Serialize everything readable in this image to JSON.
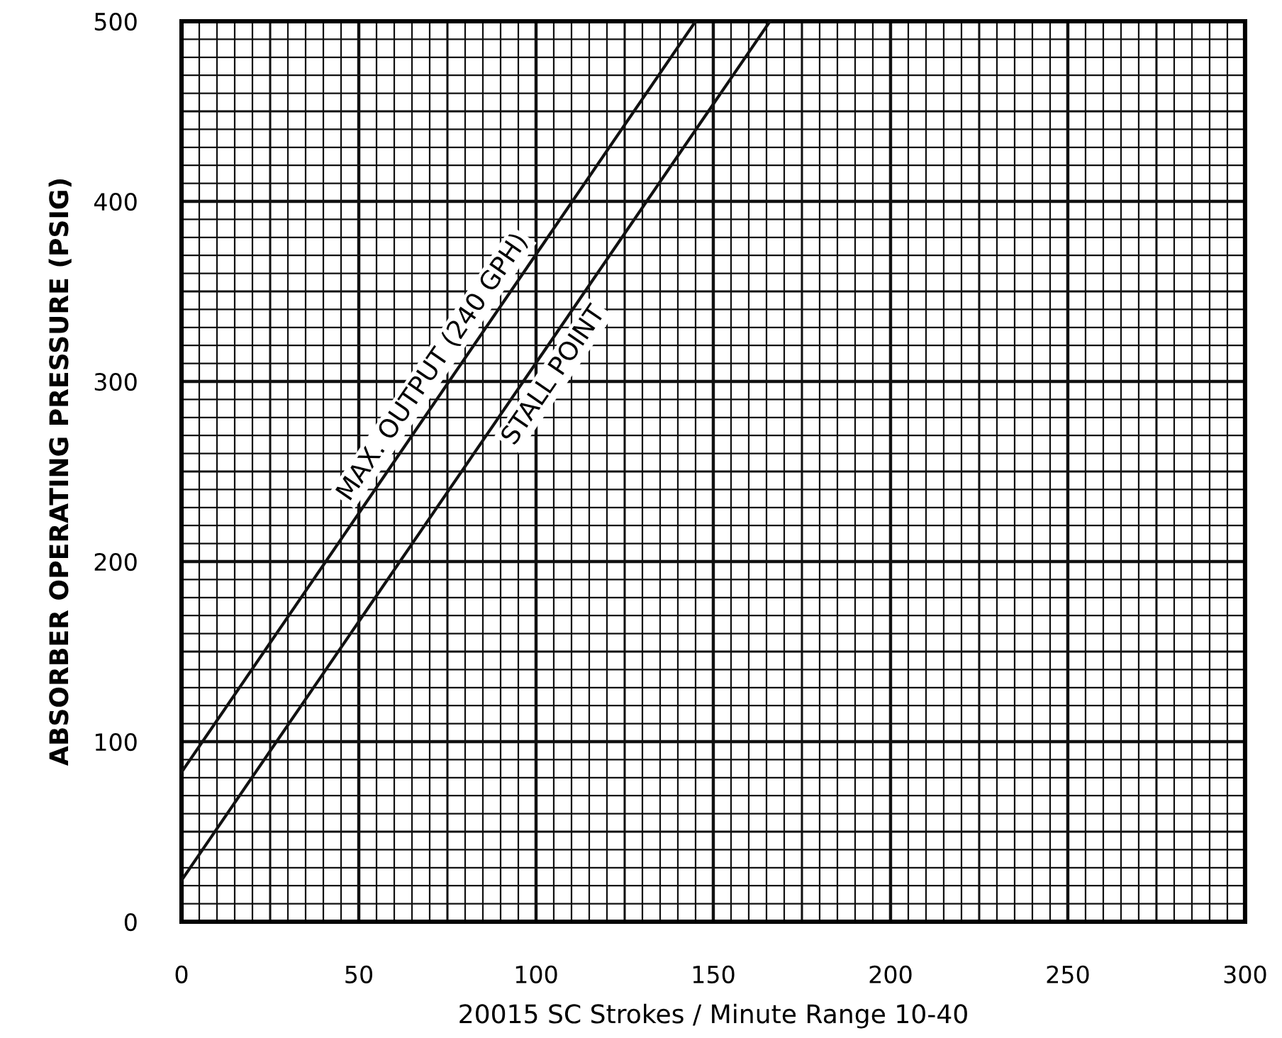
{
  "chart_data": {
    "type": "line",
    "xlabel": "20015 SC Strokes / Minute Range 10-40",
    "ylabel": "ABSORBER OPERATING PRESSURE (PSIG)",
    "series": [
      {
        "x": [
          0,
          145
        ],
        "values": [
          83,
          500
        ],
        "color": "#111111"
      },
      {
        "x": [
          0,
          166
        ],
        "values": [
          23,
          500
        ],
        "color": "#111111"
      }
    ],
    "annotations": [
      {
        "text": "MAX. OUTPUT (240 GPH)",
        "x": 76,
        "y": 301
      },
      {
        "text": "STALL POINT",
        "x": 100,
        "y": 310
      }
    ],
    "xlim": [
      0,
      300
    ],
    "xticks": [
      0,
      50,
      100,
      150,
      200,
      250,
      300
    ],
    "ylim": [
      0,
      500
    ],
    "yticks": [
      0,
      100,
      200,
      300,
      400,
      500
    ],
    "grid": true,
    "marker": "none",
    "line_style": "solid"
  }
}
